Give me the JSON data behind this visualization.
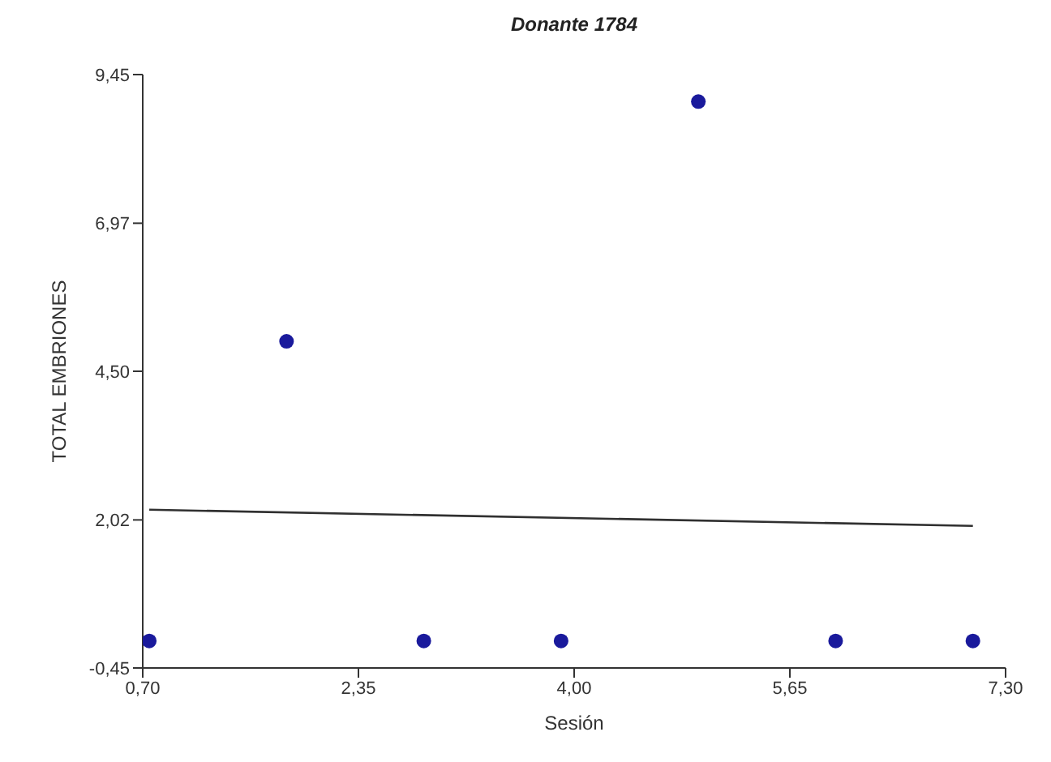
{
  "chart_data": {
    "type": "scatter",
    "title": "Donante 1784",
    "xlabel": "Sesión",
    "ylabel": "TOTAL EMBRIONES",
    "x": [
      0.75,
      1.8,
      2.85,
      3.9,
      4.95,
      6.0,
      7.05
    ],
    "series": [
      {
        "color": "#1a1a9c",
        "values": [
          0,
          5,
          0,
          0,
          9,
          0,
          0
        ],
        "marker": "circle"
      },
      {
        "type": "line",
        "color": "#303030",
        "x": [
          0.75,
          7.05
        ],
        "values": [
          2.19,
          1.92
        ],
        "marker": "none",
        "line_style": "solid"
      }
    ],
    "xlim": [
      0.7,
      7.3
    ],
    "xticks": [
      {
        "value": 0.7,
        "label": "0,70"
      },
      {
        "value": 2.35,
        "label": "2,35"
      },
      {
        "value": 4,
        "label": "4,00"
      },
      {
        "value": 5.65,
        "label": "5,65"
      },
      {
        "value": 7.3,
        "label": "7,30"
      }
    ],
    "ylim": [
      -0.45,
      9.45
    ],
    "yticks": [
      {
        "value": -0.45,
        "label": "-0,45"
      },
      {
        "value": 2.02,
        "label": "2,02"
      },
      {
        "value": 4.5,
        "label": "4,50"
      },
      {
        "value": 6.97,
        "label": "6,97"
      },
      {
        "value": 9.45,
        "label": "9,45"
      }
    ],
    "grid": false
  }
}
